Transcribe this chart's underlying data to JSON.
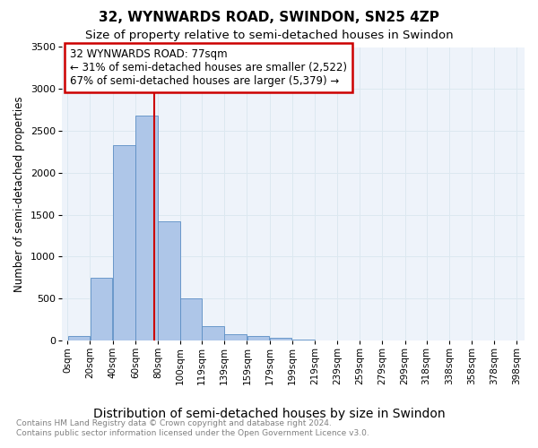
{
  "title": "32, WYNWARDS ROAD, SWINDON, SN25 4ZP",
  "subtitle": "Size of property relative to semi-detached houses in Swindon",
  "xlabel": "Distribution of semi-detached houses by size in Swindon",
  "ylabel": "Number of semi-detached properties",
  "bar_color": "#aec6e8",
  "bar_edge_color": "#5b8ec4",
  "bar_left_edges": [
    0,
    20,
    40,
    60,
    80,
    100,
    119,
    139,
    159,
    179,
    199,
    219,
    239,
    259,
    279,
    299,
    318,
    338,
    358,
    378
  ],
  "bar_widths": [
    20,
    20,
    20,
    20,
    20,
    19,
    20,
    20,
    20,
    20,
    20,
    20,
    20,
    20,
    20,
    19,
    20,
    20,
    20,
    20
  ],
  "bar_heights": [
    50,
    750,
    2330,
    2680,
    1420,
    500,
    170,
    80,
    50,
    30,
    10,
    5,
    3,
    2,
    1,
    1,
    1,
    0,
    0,
    0
  ],
  "xtick_labels": [
    "0sqm",
    "20sqm",
    "40sqm",
    "60sqm",
    "80sqm",
    "100sqm",
    "119sqm",
    "139sqm",
    "159sqm",
    "179sqm",
    "199sqm",
    "219sqm",
    "239sqm",
    "259sqm",
    "279sqm",
    "299sqm",
    "318sqm",
    "338sqm",
    "358sqm",
    "378sqm",
    "398sqm"
  ],
  "xtick_positions": [
    0,
    20,
    40,
    60,
    80,
    100,
    119,
    139,
    159,
    179,
    199,
    219,
    239,
    259,
    279,
    299,
    318,
    338,
    358,
    378,
    398
  ],
  "ylim": [
    0,
    3500
  ],
  "xlim": [
    -5,
    405
  ],
  "property_size": 77,
  "annotation_title": "32 WYNWARDS ROAD: 77sqm",
  "annotation_line1": "← 31% of semi-detached houses are smaller (2,522)",
  "annotation_line2": "67% of semi-detached houses are larger (5,379) →",
  "annotation_box_color": "#ffffff",
  "annotation_box_edge_color": "#cc0000",
  "vline_color": "#cc0000",
  "grid_color": "#dce8f0",
  "background_color": "#eef3fa",
  "footer_line1": "Contains HM Land Registry data © Crown copyright and database right 2024.",
  "footer_line2": "Contains public sector information licensed under the Open Government Licence v3.0.",
  "title_fontsize": 11,
  "subtitle_fontsize": 9.5,
  "xlabel_fontsize": 10,
  "ylabel_fontsize": 8.5,
  "tick_fontsize": 7.5,
  "annotation_fontsize": 8.5,
  "footer_fontsize": 6.5
}
